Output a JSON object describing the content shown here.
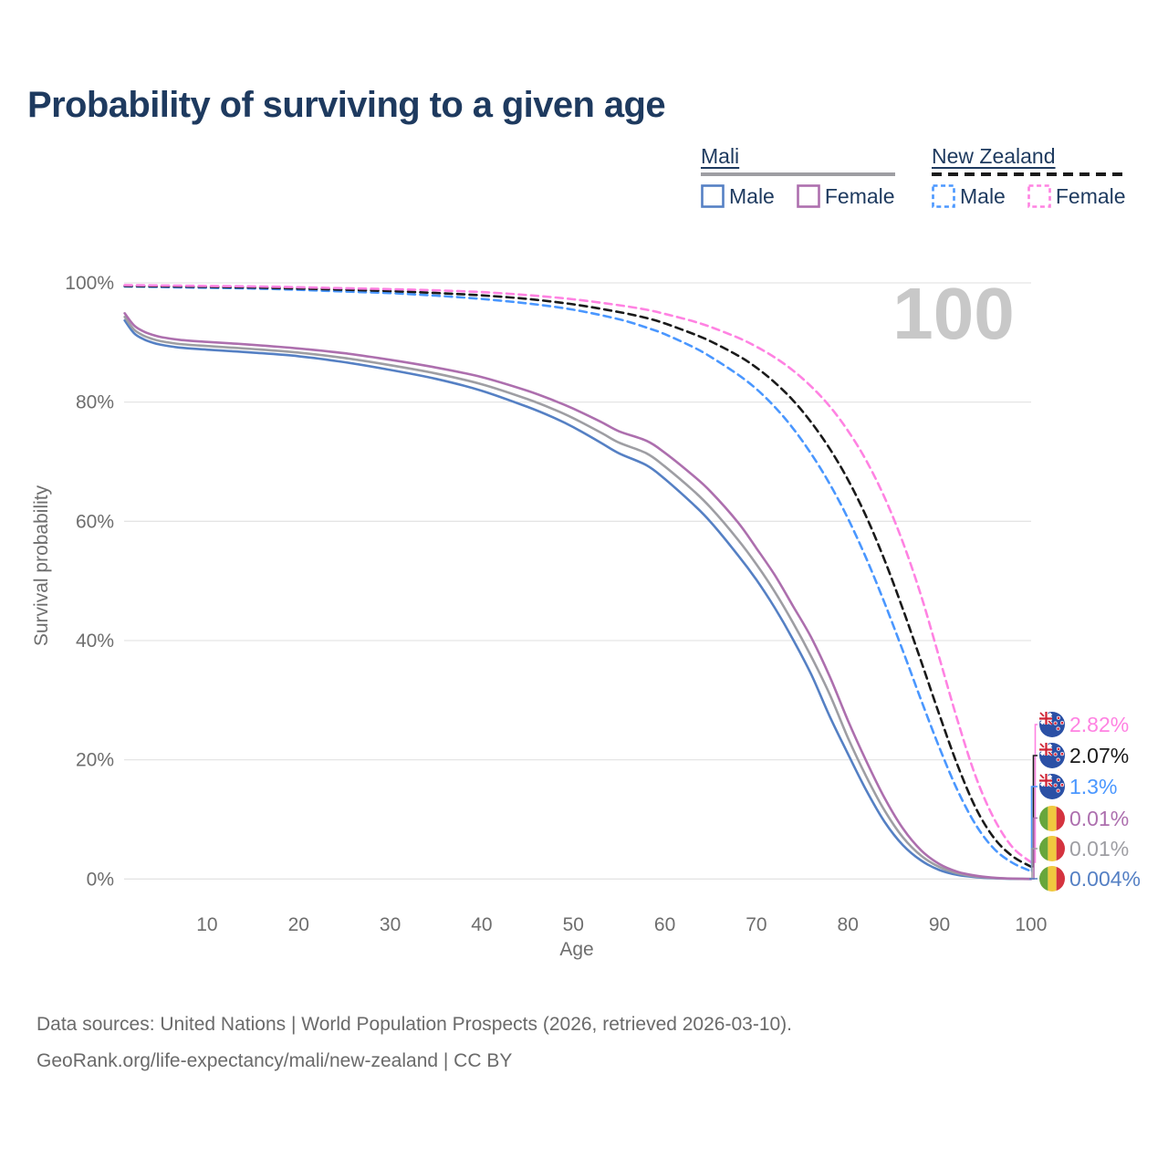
{
  "title": "Probability of surviving to a given age",
  "watermark": "100",
  "legend": {
    "groups": [
      {
        "name": "Mali",
        "line_style": "solid",
        "underline_color": "#9e9ea3",
        "items": [
          {
            "label": "Male",
            "color": "#5580c4"
          },
          {
            "label": "Female",
            "color": "#ad6fae"
          }
        ]
      },
      {
        "name": "New Zealand",
        "line_style": "dashed",
        "underline_color": "#1a1a1a",
        "items": [
          {
            "label": "Male",
            "color": "#4a97ff"
          },
          {
            "label": "Female",
            "color": "#ff82e2"
          }
        ]
      }
    ]
  },
  "chart_data": {
    "type": "line",
    "title": "Probability of surviving to a given age",
    "xlabel": "Age",
    "ylabel": "Survival probability",
    "xlim": [
      0,
      100
    ],
    "ylim": [
      0,
      100
    ],
    "grid": "horizontal",
    "x_ticks": [
      10,
      20,
      30,
      40,
      50,
      60,
      70,
      80,
      90,
      100
    ],
    "y_ticks": [
      {
        "value": 0,
        "label": "0%"
      },
      {
        "value": 20,
        "label": "20%"
      },
      {
        "value": 40,
        "label": "40%"
      },
      {
        "value": 60,
        "label": "60%"
      },
      {
        "value": 80,
        "label": "80%"
      },
      {
        "value": 100,
        "label": "100%"
      }
    ],
    "series": [
      {
        "name": "New Zealand Female",
        "country": "New Zealand",
        "sex": "Female",
        "flag": "nz",
        "color": "#ff82e2",
        "dash": "dashed",
        "end_label": "2.82%",
        "end_value": 2.82,
        "points": [
          [
            1,
            99.62
          ],
          [
            5,
            99.56
          ],
          [
            10,
            99.48
          ],
          [
            15,
            99.4
          ],
          [
            20,
            99.27
          ],
          [
            25,
            99.1
          ],
          [
            30,
            98.95
          ],
          [
            35,
            98.75
          ],
          [
            40,
            98.45
          ],
          [
            45,
            97.95
          ],
          [
            50,
            97.25
          ],
          [
            55,
            96.25
          ],
          [
            58,
            95.5
          ],
          [
            60,
            94.8
          ],
          [
            63,
            93.6
          ],
          [
            65,
            92.6
          ],
          [
            68,
            90.8
          ],
          [
            70,
            89.3
          ],
          [
            72,
            87.5
          ],
          [
            74,
            85.3
          ],
          [
            76,
            82.6
          ],
          [
            78,
            79.3
          ],
          [
            80,
            75.2
          ],
          [
            82,
            70.2
          ],
          [
            84,
            64.0
          ],
          [
            86,
            56.5
          ],
          [
            88,
            47.5
          ],
          [
            90,
            37.0
          ],
          [
            92,
            26.5
          ],
          [
            94,
            17.0
          ],
          [
            96,
            10.0
          ],
          [
            98,
            5.3
          ],
          [
            100,
            2.82
          ]
        ]
      },
      {
        "name": "New Zealand Total",
        "country": "New Zealand",
        "sex": "Both sexes",
        "flag": "nz",
        "color": "#1a1a1a",
        "dash": "dashed",
        "end_label": "2.07%",
        "end_value": 2.07,
        "points": [
          [
            1,
            99.5
          ],
          [
            5,
            99.42
          ],
          [
            10,
            99.33
          ],
          [
            15,
            99.22
          ],
          [
            20,
            99.05
          ],
          [
            25,
            98.85
          ],
          [
            30,
            98.62
          ],
          [
            35,
            98.3
          ],
          [
            40,
            97.9
          ],
          [
            45,
            97.3
          ],
          [
            50,
            96.4
          ],
          [
            55,
            95.1
          ],
          [
            58,
            94.1
          ],
          [
            60,
            93.2
          ],
          [
            63,
            91.5
          ],
          [
            65,
            90.2
          ],
          [
            68,
            87.8
          ],
          [
            70,
            85.8
          ],
          [
            72,
            83.3
          ],
          [
            74,
            80.3
          ],
          [
            76,
            76.6
          ],
          [
            78,
            72.2
          ],
          [
            80,
            67.0
          ],
          [
            82,
            60.8
          ],
          [
            84,
            53.5
          ],
          [
            86,
            45.3
          ],
          [
            88,
            36.5
          ],
          [
            90,
            27.5
          ],
          [
            92,
            19.0
          ],
          [
            94,
            11.8
          ],
          [
            96,
            6.8
          ],
          [
            98,
            3.8
          ],
          [
            100,
            2.07
          ]
        ]
      },
      {
        "name": "New Zealand Male",
        "country": "New Zealand",
        "sex": "Male",
        "flag": "nz",
        "color": "#4a97ff",
        "dash": "dashed",
        "end_label": "1.3%",
        "end_value": 1.3,
        "points": [
          [
            1,
            99.4
          ],
          [
            5,
            99.3
          ],
          [
            10,
            99.18
          ],
          [
            15,
            99.05
          ],
          [
            20,
            98.83
          ],
          [
            25,
            98.55
          ],
          [
            30,
            98.28
          ],
          [
            35,
            97.85
          ],
          [
            40,
            97.3
          ],
          [
            45,
            96.55
          ],
          [
            50,
            95.5
          ],
          [
            55,
            93.9
          ],
          [
            58,
            92.5
          ],
          [
            60,
            91.4
          ],
          [
            63,
            89.3
          ],
          [
            65,
            87.6
          ],
          [
            68,
            84.6
          ],
          [
            70,
            82.2
          ],
          [
            72,
            79.2
          ],
          [
            74,
            75.6
          ],
          [
            76,
            71.3
          ],
          [
            78,
            66.3
          ],
          [
            80,
            60.5
          ],
          [
            82,
            53.8
          ],
          [
            84,
            46.3
          ],
          [
            86,
            38.3
          ],
          [
            88,
            30.0
          ],
          [
            90,
            22.0
          ],
          [
            92,
            14.8
          ],
          [
            94,
            9.0
          ],
          [
            96,
            5.0
          ],
          [
            98,
            2.7
          ],
          [
            100,
            1.3
          ]
        ]
      },
      {
        "name": "Mali Female",
        "country": "Mali",
        "sex": "Female",
        "flag": "mali",
        "color": "#ad6fae",
        "dash": "solid",
        "end_label": "0.01%",
        "end_value": 0.01,
        "points": [
          [
            1,
            94.9
          ],
          [
            2,
            92.9
          ],
          [
            3,
            91.9
          ],
          [
            4,
            91.3
          ],
          [
            5,
            90.9
          ],
          [
            7,
            90.45
          ],
          [
            10,
            90.1
          ],
          [
            15,
            89.6
          ],
          [
            20,
            89.0
          ],
          [
            25,
            88.2
          ],
          [
            30,
            87.1
          ],
          [
            35,
            85.8
          ],
          [
            40,
            84.2
          ],
          [
            45,
            81.9
          ],
          [
            48,
            80.2
          ],
          [
            50,
            78.9
          ],
          [
            53,
            76.7
          ],
          [
            55,
            75.1
          ],
          [
            58,
            73.5
          ],
          [
            60,
            71.5
          ],
          [
            63,
            67.8
          ],
          [
            65,
            65.0
          ],
          [
            68,
            59.8
          ],
          [
            70,
            55.5
          ],
          [
            72,
            51.0
          ],
          [
            74,
            45.8
          ],
          [
            76,
            40.5
          ],
          [
            78,
            34.0
          ],
          [
            80,
            26.6
          ],
          [
            82,
            19.8
          ],
          [
            84,
            13.6
          ],
          [
            86,
            8.5
          ],
          [
            88,
            4.8
          ],
          [
            90,
            2.5
          ],
          [
            92,
            1.2
          ],
          [
            94,
            0.55
          ],
          [
            96,
            0.22
          ],
          [
            98,
            0.07
          ],
          [
            100,
            0.01
          ]
        ]
      },
      {
        "name": "Mali Total",
        "country": "Mali",
        "sex": "Both sexes",
        "flag": "mali",
        "color": "#9e9ea3",
        "dash": "solid",
        "end_label": "0.01%",
        "end_value": 0.01,
        "points": [
          [
            1,
            94.3
          ],
          [
            2,
            92.2
          ],
          [
            3,
            91.2
          ],
          [
            4,
            90.6
          ],
          [
            5,
            90.2
          ],
          [
            7,
            89.75
          ],
          [
            10,
            89.4
          ],
          [
            15,
            88.9
          ],
          [
            20,
            88.3
          ],
          [
            25,
            87.4
          ],
          [
            30,
            86.2
          ],
          [
            35,
            84.8
          ],
          [
            40,
            83.0
          ],
          [
            45,
            80.5
          ],
          [
            48,
            78.7
          ],
          [
            50,
            77.3
          ],
          [
            53,
            74.9
          ],
          [
            55,
            73.2
          ],
          [
            58,
            71.4
          ],
          [
            60,
            69.2
          ],
          [
            63,
            65.3
          ],
          [
            65,
            62.3
          ],
          [
            68,
            56.9
          ],
          [
            70,
            52.8
          ],
          [
            72,
            48.2
          ],
          [
            74,
            43.0
          ],
          [
            76,
            37.3
          ],
          [
            78,
            31.0
          ],
          [
            80,
            23.7
          ],
          [
            82,
            17.2
          ],
          [
            84,
            11.5
          ],
          [
            86,
            7.0
          ],
          [
            88,
            3.9
          ],
          [
            90,
            2.0
          ],
          [
            92,
            0.95
          ],
          [
            94,
            0.42
          ],
          [
            96,
            0.17
          ],
          [
            98,
            0.05
          ],
          [
            100,
            0.01
          ]
        ]
      },
      {
        "name": "Mali Male",
        "country": "Mali",
        "sex": "Male",
        "flag": "mali",
        "color": "#5580c4",
        "dash": "solid",
        "end_label": "0.004%",
        "end_value": 0.004,
        "points": [
          [
            1,
            93.7
          ],
          [
            2,
            91.6
          ],
          [
            3,
            90.6
          ],
          [
            4,
            90.0
          ],
          [
            5,
            89.6
          ],
          [
            7,
            89.15
          ],
          [
            10,
            88.8
          ],
          [
            15,
            88.3
          ],
          [
            20,
            87.7
          ],
          [
            25,
            86.7
          ],
          [
            30,
            85.4
          ],
          [
            35,
            83.9
          ],
          [
            40,
            81.9
          ],
          [
            45,
            79.2
          ],
          [
            48,
            77.3
          ],
          [
            50,
            75.8
          ],
          [
            53,
            73.2
          ],
          [
            55,
            71.4
          ],
          [
            58,
            69.4
          ],
          [
            60,
            67.1
          ],
          [
            63,
            63.0
          ],
          [
            65,
            59.9
          ],
          [
            68,
            54.3
          ],
          [
            70,
            50.2
          ],
          [
            72,
            45.5
          ],
          [
            74,
            40.2
          ],
          [
            76,
            34.3
          ],
          [
            78,
            27.3
          ],
          [
            80,
            21.0
          ],
          [
            82,
            14.9
          ],
          [
            84,
            9.6
          ],
          [
            86,
            5.7
          ],
          [
            88,
            3.1
          ],
          [
            90,
            1.5
          ],
          [
            92,
            0.68
          ],
          [
            94,
            0.3
          ],
          [
            96,
            0.12
          ],
          [
            98,
            0.035
          ],
          [
            100,
            0.004
          ]
        ]
      }
    ]
  },
  "footer": {
    "line1": "Data sources: United Nations | World Population Prospects (2026, retrieved 2026-03-10).",
    "line2": "GeoRank.org/life-expectancy/mali/new-zealand | CC BY"
  }
}
